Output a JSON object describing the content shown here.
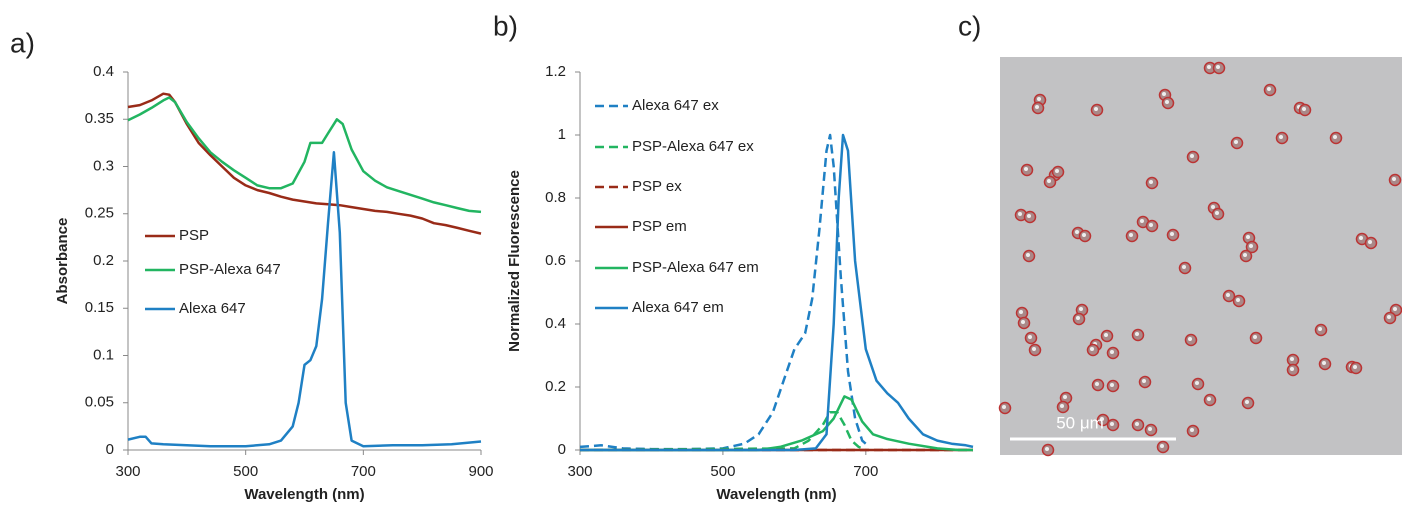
{
  "chart_data": [
    {
      "type": "line",
      "panel_label": "a)",
      "x_label": "Wavelength (nm)",
      "y_label": "Absorbance",
      "xlim": [
        300,
        900
      ],
      "xticks": [
        300,
        500,
        700,
        900
      ],
      "ylim": [
        0,
        0.4
      ],
      "yticks": [
        0,
        0.05,
        0.1,
        0.15,
        0.2,
        0.25,
        0.3,
        0.35,
        0.4
      ],
      "grid": false,
      "series": [
        {
          "name": "PSP",
          "color": "#992b18",
          "dashed": false,
          "x": [
            300,
            320,
            340,
            360,
            370,
            380,
            400,
            420,
            440,
            460,
            480,
            500,
            520,
            540,
            560,
            580,
            600,
            620,
            640,
            660,
            680,
            700,
            720,
            740,
            760,
            780,
            800,
            820,
            840,
            860,
            880,
            900
          ],
          "values": [
            0.363,
            0.365,
            0.37,
            0.377,
            0.376,
            0.368,
            0.345,
            0.325,
            0.312,
            0.3,
            0.288,
            0.28,
            0.275,
            0.272,
            0.268,
            0.265,
            0.263,
            0.261,
            0.26,
            0.259,
            0.257,
            0.255,
            0.253,
            0.252,
            0.25,
            0.248,
            0.245,
            0.24,
            0.238,
            0.235,
            0.232,
            0.229
          ]
        },
        {
          "name": "PSP-Alexa 647",
          "color": "#22b561",
          "dashed": false,
          "x": [
            300,
            320,
            340,
            360,
            370,
            380,
            400,
            420,
            440,
            460,
            480,
            500,
            520,
            540,
            560,
            580,
            600,
            610,
            630,
            640,
            655,
            665,
            680,
            700,
            720,
            740,
            760,
            780,
            800,
            820,
            840,
            860,
            880,
            900
          ],
          "values": [
            0.349,
            0.355,
            0.362,
            0.37,
            0.373,
            0.368,
            0.347,
            0.33,
            0.315,
            0.305,
            0.296,
            0.288,
            0.28,
            0.277,
            0.277,
            0.282,
            0.305,
            0.325,
            0.325,
            0.335,
            0.35,
            0.345,
            0.318,
            0.295,
            0.285,
            0.278,
            0.274,
            0.27,
            0.266,
            0.262,
            0.259,
            0.256,
            0.253,
            0.252
          ]
        },
        {
          "name": "Alexa 647",
          "color": "#1f80c4",
          "dashed": false,
          "x": [
            300,
            320,
            330,
            340,
            360,
            400,
            440,
            460,
            500,
            540,
            560,
            580,
            590,
            600,
            610,
            620,
            630,
            640,
            650,
            660,
            670,
            680,
            700,
            750,
            800,
            850,
            900
          ],
          "values": [
            0.011,
            0.014,
            0.014,
            0.007,
            0.006,
            0.005,
            0.004,
            0.004,
            0.004,
            0.006,
            0.01,
            0.025,
            0.05,
            0.09,
            0.095,
            0.11,
            0.16,
            0.24,
            0.315,
            0.23,
            0.05,
            0.01,
            0.004,
            0.005,
            0.005,
            0.006,
            0.009
          ]
        }
      ]
    },
    {
      "type": "line",
      "panel_label": "b)",
      "x_label": "Wavelength (nm)",
      "y_label": "Normalized Fluorescence",
      "xlim": [
        300,
        850
      ],
      "xticks": [
        300,
        500,
        700
      ],
      "ylim": [
        0,
        1.2
      ],
      "yticks": [
        0,
        0.2,
        0.4,
        0.6,
        0.8,
        1,
        1.2
      ],
      "grid": false,
      "series": [
        {
          "name": "Alexa 647 ex",
          "color": "#1f80c4",
          "dashed": true,
          "x": [
            300,
            330,
            360,
            400,
            450,
            500,
            530,
            550,
            570,
            585,
            600,
            615,
            625,
            635,
            645,
            650,
            655,
            665,
            675,
            685,
            695,
            705
          ],
          "values": [
            0.01,
            0.015,
            0.005,
            0.003,
            0.003,
            0.005,
            0.02,
            0.05,
            0.12,
            0.22,
            0.32,
            0.37,
            0.48,
            0.7,
            0.95,
            1,
            0.9,
            0.55,
            0.25,
            0.1,
            0.03,
            0.01
          ]
        },
        {
          "name": "PSP-Alexa 647 ex",
          "color": "#22b561",
          "dashed": true,
          "x": [
            300,
            600,
            620,
            640,
            650,
            660,
            670,
            680,
            690,
            700
          ],
          "values": [
            0,
            0.005,
            0.03,
            0.08,
            0.12,
            0.12,
            0.08,
            0.03,
            0.01,
            0
          ]
        },
        {
          "name": "PSP ex",
          "color": "#992b18",
          "dashed": true,
          "x": [
            300,
            850
          ],
          "values": [
            0,
            0
          ]
        },
        {
          "name": "PSP em",
          "color": "#992b18",
          "dashed": false,
          "x": [
            300,
            850
          ],
          "values": [
            0,
            0
          ]
        },
        {
          "name": "PSP-Alexa 647 em",
          "color": "#22b561",
          "dashed": false,
          "x": [
            300,
            550,
            580,
            610,
            640,
            655,
            670,
            680,
            695,
            710,
            730,
            760,
            800,
            830,
            850
          ],
          "values": [
            0,
            0,
            0.01,
            0.03,
            0.06,
            0.1,
            0.17,
            0.16,
            0.09,
            0.05,
            0.035,
            0.02,
            0.005,
            0,
            0
          ]
        },
        {
          "name": "Alexa 647 em",
          "color": "#1f80c4",
          "dashed": false,
          "x": [
            300,
            600,
            630,
            645,
            655,
            662,
            668,
            675,
            685,
            700,
            715,
            730,
            745,
            760,
            780,
            800,
            820,
            840,
            850
          ],
          "values": [
            0,
            0,
            0.005,
            0.05,
            0.4,
            0.8,
            1,
            0.95,
            0.6,
            0.32,
            0.22,
            0.18,
            0.15,
            0.1,
            0.05,
            0.03,
            0.02,
            0.015,
            0.01
          ]
        }
      ]
    }
  ],
  "image_panel": {
    "label": "c)",
    "scale_bar_label": "50 μm"
  }
}
